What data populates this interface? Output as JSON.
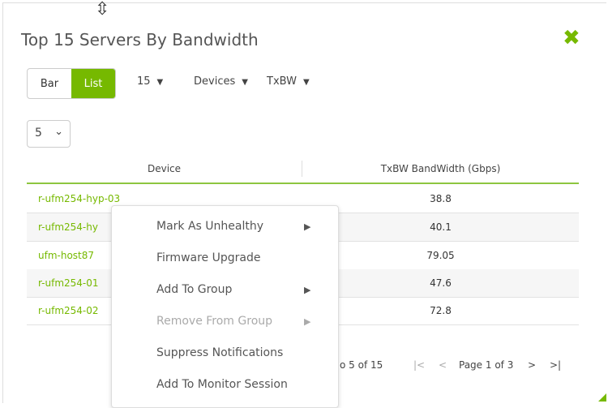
{
  "widget": {
    "title": "Top 15 Servers By Bandwidth"
  },
  "view_toggle": {
    "bar": "Bar",
    "list": "List",
    "active": "List"
  },
  "filters": {
    "count": "15",
    "entity": "Devices",
    "metric": "TxBW"
  },
  "page_size": "5",
  "table": {
    "headers": [
      "Device",
      "TxBW BandWidth (Gbps)"
    ],
    "rows": [
      {
        "device": "r-ufm254-hyp-03",
        "value": "38.8"
      },
      {
        "device": "r-ufm254-hy",
        "value": "40.1"
      },
      {
        "device": "ufm-host87",
        "value": "79.05"
      },
      {
        "device": "r-ufm254-01",
        "value": "47.6"
      },
      {
        "device": "r-ufm254-02",
        "value": "72.8"
      }
    ]
  },
  "context_menu": {
    "items": [
      {
        "label": "Mark As Unhealthy",
        "submenu": true,
        "disabled": false
      },
      {
        "label": "Firmware Upgrade",
        "submenu": false,
        "disabled": false
      },
      {
        "label": "Add To Group",
        "submenu": true,
        "disabled": false
      },
      {
        "label": "Remove From Group",
        "submenu": true,
        "disabled": true
      },
      {
        "label": "Suppress Notifications",
        "submenu": false,
        "disabled": false
      },
      {
        "label": "Add To Monitor Session",
        "submenu": false,
        "disabled": false
      }
    ]
  },
  "pagination": {
    "range": "o 5 of 15",
    "page": "Page 1 of 3"
  },
  "colors": {
    "accent": "#76b900"
  }
}
